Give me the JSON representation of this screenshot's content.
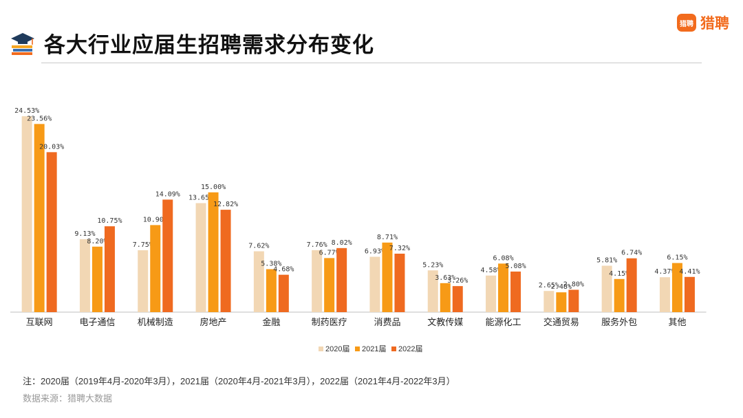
{
  "header": {
    "title": "各大行业应届生招聘需求分布变化",
    "brand_badge": "猎聘",
    "brand_name": "猎聘"
  },
  "chart_data": {
    "type": "bar",
    "title": "各大行业应届生招聘需求分布变化",
    "categories": [
      "互联网",
      "电子通信",
      "机械制造",
      "房地产",
      "金融",
      "制药医疗",
      "消费品",
      "文教传媒",
      "能源化工",
      "交通贸易",
      "服务外包",
      "其他"
    ],
    "series": [
      {
        "name": "2020届",
        "color": "#f2d7b4",
        "values": [
          24.53,
          9.13,
          7.75,
          13.65,
          7.62,
          7.76,
          6.93,
          5.23,
          4.58,
          2.65,
          5.81,
          4.37
        ]
      },
      {
        "name": "2021届",
        "color": "#f79a16",
        "values": [
          23.56,
          8.2,
          10.9,
          15.0,
          5.38,
          6.77,
          8.71,
          3.63,
          6.08,
          2.48,
          4.15,
          6.15
        ]
      },
      {
        "name": "2022届",
        "color": "#ef6a20",
        "values": [
          20.03,
          10.75,
          14.09,
          12.82,
          4.68,
          8.02,
          7.32,
          3.26,
          5.08,
          2.8,
          6.74,
          4.41
        ]
      }
    ],
    "ylim": [
      0,
      26
    ],
    "value_suffix": "%",
    "grid": false,
    "legend_position": "bottom-center"
  },
  "footer": {
    "note": "注：2020届（2019年4月-2020年3月），2021届（2020年4月-2021年3月），2022届（2021年4月-2022年3月）",
    "source": "数据来源：猎聘大数据"
  }
}
